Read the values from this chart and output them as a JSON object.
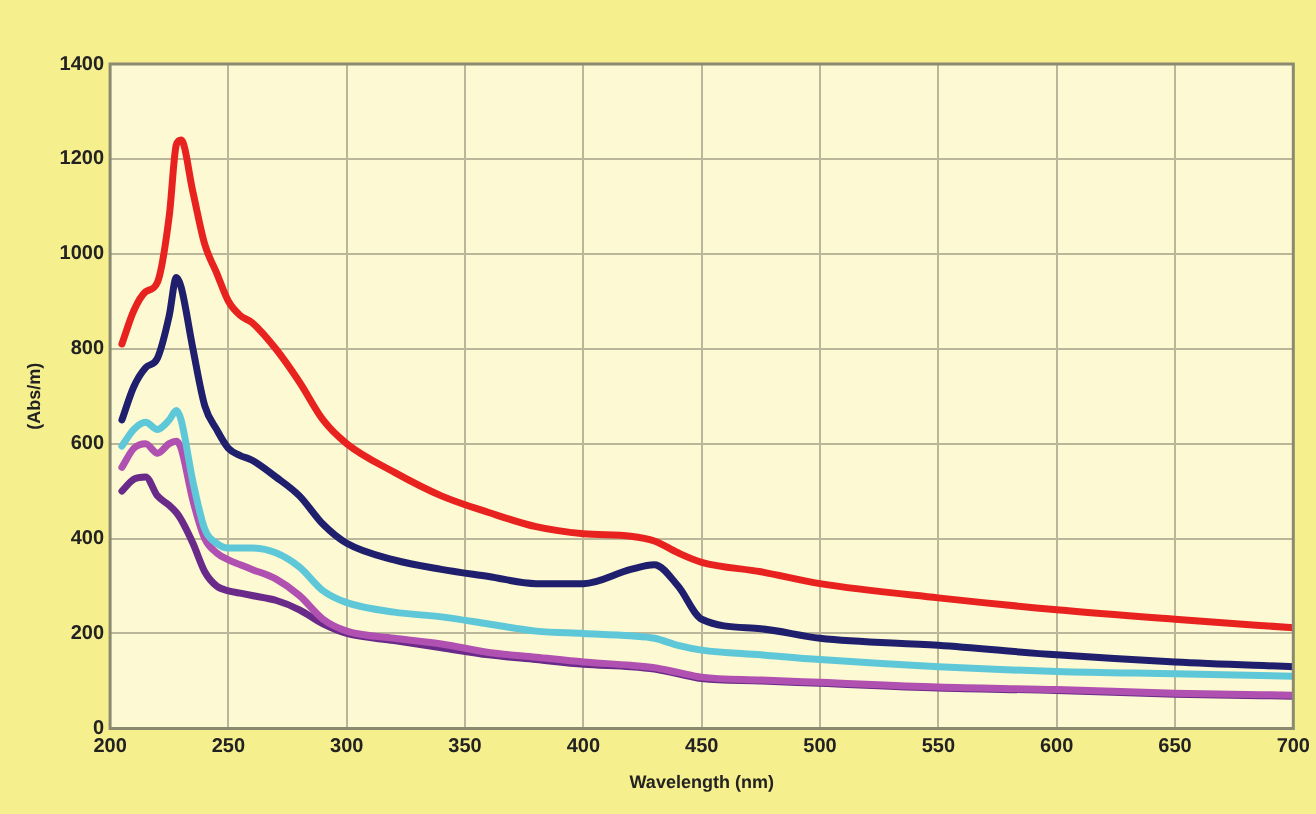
{
  "chart_data": {
    "type": "line",
    "xlabel": "Wavelength (nm)",
    "ylabel": "(Abs/m)",
    "x": [
      205,
      210,
      215,
      220,
      225,
      228,
      230,
      235,
      240,
      245,
      250,
      255,
      260,
      270,
      280,
      290,
      300,
      320,
      340,
      360,
      380,
      400,
      420,
      430,
      440,
      450,
      475,
      500,
      550,
      600,
      650,
      700
    ],
    "series": [
      {
        "color": "#e8231f",
        "values": [
          810,
          880,
          920,
          940,
          1080,
          1230,
          1240,
          1130,
          1020,
          960,
          900,
          870,
          855,
          800,
          730,
          650,
          600,
          540,
          490,
          455,
          425,
          410,
          405,
          395,
          370,
          350,
          330,
          305,
          275,
          250,
          230,
          212
        ]
      },
      {
        "color": "#1f1f6e",
        "values": [
          650,
          720,
          760,
          780,
          870,
          950,
          930,
          800,
          680,
          630,
          590,
          575,
          565,
          530,
          490,
          430,
          390,
          355,
          335,
          320,
          305,
          305,
          335,
          345,
          300,
          230,
          210,
          190,
          175,
          155,
          140,
          130
        ]
      },
      {
        "color": "#5ec8d8",
        "values": [
          595,
          630,
          645,
          630,
          650,
          670,
          650,
          520,
          420,
          390,
          380,
          380,
          380,
          370,
          340,
          290,
          265,
          245,
          235,
          220,
          205,
          200,
          195,
          190,
          175,
          165,
          155,
          145,
          130,
          120,
          115,
          110
        ]
      },
      {
        "color": "#b050b0",
        "values": [
          550,
          590,
          600,
          580,
          600,
          605,
          590,
          480,
          400,
          370,
          355,
          345,
          335,
          315,
          280,
          230,
          205,
          190,
          178,
          160,
          150,
          140,
          133,
          128,
          118,
          108,
          102,
          97,
          87,
          82,
          74,
          70
        ]
      },
      {
        "color": "#6a2a8a",
        "values": [
          500,
          525,
          530,
          490,
          470,
          455,
          440,
          390,
          330,
          300,
          290,
          285,
          280,
          270,
          250,
          220,
          200,
          185,
          170,
          155,
          145,
          135,
          130,
          125,
          115,
          105,
          100,
          95,
          85,
          80,
          72,
          68
        ]
      }
    ],
    "xlim": [
      200,
      700
    ],
    "xticks": [
      200,
      250,
      300,
      350,
      400,
      450,
      500,
      550,
      600,
      650,
      700
    ],
    "ylim": [
      0,
      1400
    ],
    "yticks": [
      0,
      200,
      400,
      600,
      800,
      1000,
      1200,
      1400
    ],
    "grid": true,
    "marker": "none",
    "line_style": "solid"
  }
}
